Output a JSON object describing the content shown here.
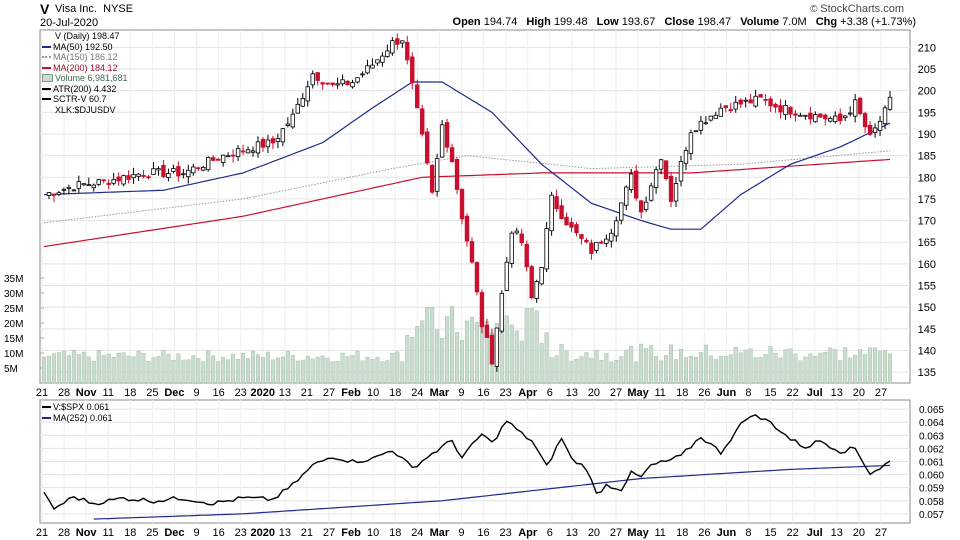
{
  "header": {
    "symbol": "V",
    "company": "Visa Inc.",
    "exchange": "NYSE",
    "date": "20-Jul-2020",
    "brand": "StockCharts.com",
    "ohlc": {
      "open_label": "Open",
      "open": "194.74",
      "high_label": "High",
      "high": "199.48",
      "low_label": "Low",
      "low": "193.67",
      "close_label": "Close",
      "close": "198.47",
      "volume_label": "Volume",
      "volume": "7.0M",
      "chg_label": "Chg",
      "chg": "+3.38 (+1.73%)"
    }
  },
  "colors": {
    "up": "#000000",
    "down": "#c8102e",
    "ma50": "#1e2a8c",
    "ma150": "#9a9a9a",
    "ma200": "#c8102e",
    "volume": "#c9dccd",
    "grid": "#e3e3e3",
    "ratio": "#000000",
    "ratio_ma": "#1e2a8c"
  },
  "price_panel": {
    "legend": [
      {
        "text": "V (Daily) 198.47",
        "swatch": "none"
      },
      {
        "text": "MA(50) 192.50",
        "swatch": "ma50"
      },
      {
        "text": "MA(150) 186.12",
        "swatch": "ma150"
      },
      {
        "text": "MA(200) 184.12",
        "swatch": "ma200"
      },
      {
        "text": "Volume 6,981,681",
        "swatch": "volume"
      },
      {
        "text": "ATR(200) 4.432",
        "swatch": "black"
      },
      {
        "text": "SCTR-V 60.7",
        "swatch": "black"
      },
      {
        "text": "XLK:$DJUSDV",
        "swatch": "none"
      }
    ],
    "y_ticks": [
      210,
      205,
      200,
      195,
      190,
      185,
      180,
      175,
      170,
      165,
      160,
      155,
      150,
      145,
      140,
      135
    ],
    "ylim": [
      132.5,
      214
    ],
    "volume_ticks": [
      "35M",
      "30M",
      "25M",
      "20M",
      "15M",
      "10M",
      "5M"
    ],
    "volume_values_m": [
      35,
      30,
      25,
      20,
      15,
      10,
      5
    ]
  },
  "ratio_panel": {
    "legend": [
      {
        "text": "V:$SPX 0.061",
        "swatch": "black"
      },
      {
        "text": "MA(252) 0.061",
        "swatch": "ma50"
      }
    ],
    "y_ticks": [
      "0.065",
      "0.064",
      "0.063",
      "0.062",
      "0.061",
      "0.060",
      "0.059",
      "0.058",
      "0.057"
    ],
    "ylim": [
      0.0563,
      0.0657
    ]
  },
  "x_axis": {
    "labels": [
      {
        "label": "21",
        "bold": false
      },
      {
        "label": "28",
        "bold": false
      },
      {
        "label": "Nov",
        "bold": true
      },
      {
        "label": "11",
        "bold": false
      },
      {
        "label": "18",
        "bold": false
      },
      {
        "label": "25",
        "bold": false
      },
      {
        "label": "Dec",
        "bold": true
      },
      {
        "label": "9",
        "bold": false
      },
      {
        "label": "16",
        "bold": false
      },
      {
        "label": "23",
        "bold": false
      },
      {
        "label": "2020",
        "bold": true
      },
      {
        "label": "13",
        "bold": false
      },
      {
        "label": "21",
        "bold": false
      },
      {
        "label": "27",
        "bold": false
      },
      {
        "label": "Feb",
        "bold": true
      },
      {
        "label": "10",
        "bold": false
      },
      {
        "label": "18",
        "bold": false
      },
      {
        "label": "24",
        "bold": false
      },
      {
        "label": "Mar",
        "bold": true
      },
      {
        "label": "9",
        "bold": false
      },
      {
        "label": "16",
        "bold": false
      },
      {
        "label": "23",
        "bold": false
      },
      {
        "label": "Apr",
        "bold": true
      },
      {
        "label": "6",
        "bold": false
      },
      {
        "label": "13",
        "bold": false
      },
      {
        "label": "20",
        "bold": false
      },
      {
        "label": "27",
        "bold": false
      },
      {
        "label": "May",
        "bold": true
      },
      {
        "label": "11",
        "bold": false
      },
      {
        "label": "18",
        "bold": false
      },
      {
        "label": "26",
        "bold": false
      },
      {
        "label": "Jun",
        "bold": true
      },
      {
        "label": "8",
        "bold": false
      },
      {
        "label": "15",
        "bold": false
      },
      {
        "label": "22",
        "bold": false
      },
      {
        "label": "Jul",
        "bold": true
      },
      {
        "label": "13",
        "bold": false
      },
      {
        "label": "20",
        "bold": false
      },
      {
        "label": "27",
        "bold": false
      }
    ]
  },
  "chart_data": {
    "type": "candlestick",
    "title": "V (Daily) 198.47",
    "x_axis_label": "",
    "y_axis_label": "",
    "price_anchor_points": [
      {
        "t": 0,
        "close": 176
      },
      {
        "t": 6,
        "close": 178
      },
      {
        "t": 12,
        "close": 179
      },
      {
        "t": 20,
        "close": 181
      },
      {
        "t": 28,
        "close": 181
      },
      {
        "t": 36,
        "close": 185
      },
      {
        "t": 42,
        "close": 187
      },
      {
        "t": 46,
        "close": 188
      },
      {
        "t": 50,
        "close": 194
      },
      {
        "t": 54,
        "close": 204
      },
      {
        "t": 58,
        "close": 201
      },
      {
        "t": 62,
        "close": 202
      },
      {
        "t": 66,
        "close": 206
      },
      {
        "t": 70,
        "close": 211
      },
      {
        "t": 72,
        "close": 212
      },
      {
        "t": 74,
        "close": 201
      },
      {
        "t": 76,
        "close": 189
      },
      {
        "t": 78,
        "close": 176
      },
      {
        "t": 80,
        "close": 192
      },
      {
        "t": 82,
        "close": 184
      },
      {
        "t": 84,
        "close": 171
      },
      {
        "t": 86,
        "close": 160
      },
      {
        "t": 88,
        "close": 146
      },
      {
        "t": 90,
        "close": 138
      },
      {
        "t": 92,
        "close": 153
      },
      {
        "t": 94,
        "close": 168
      },
      {
        "t": 96,
        "close": 165
      },
      {
        "t": 98,
        "close": 152
      },
      {
        "t": 100,
        "close": 160
      },
      {
        "t": 102,
        "close": 175
      },
      {
        "t": 106,
        "close": 168
      },
      {
        "t": 110,
        "close": 163
      },
      {
        "t": 114,
        "close": 168
      },
      {
        "t": 118,
        "close": 180
      },
      {
        "t": 120,
        "close": 172
      },
      {
        "t": 124,
        "close": 185
      },
      {
        "t": 126,
        "close": 175
      },
      {
        "t": 128,
        "close": 183
      },
      {
        "t": 130,
        "close": 191
      },
      {
        "t": 136,
        "close": 196
      },
      {
        "t": 140,
        "close": 197
      },
      {
        "t": 144,
        "close": 198
      },
      {
        "t": 148,
        "close": 196
      },
      {
        "t": 152,
        "close": 195
      },
      {
        "t": 156,
        "close": 194
      },
      {
        "t": 160,
        "close": 193
      },
      {
        "t": 163,
        "close": 197
      },
      {
        "t": 166,
        "close": 189
      },
      {
        "t": 169,
        "close": 195
      },
      {
        "t": 170,
        "close": 198.47
      }
    ],
    "ma50_anchor_points": [
      {
        "t": 0,
        "v": 176
      },
      {
        "t": 24,
        "v": 177
      },
      {
        "t": 40,
        "v": 181
      },
      {
        "t": 56,
        "v": 188
      },
      {
        "t": 66,
        "v": 196
      },
      {
        "t": 74,
        "v": 202
      },
      {
        "t": 80,
        "v": 202
      },
      {
        "t": 90,
        "v": 195
      },
      {
        "t": 100,
        "v": 183
      },
      {
        "t": 110,
        "v": 174
      },
      {
        "t": 120,
        "v": 170
      },
      {
        "t": 126,
        "v": 168
      },
      {
        "t": 132,
        "v": 168
      },
      {
        "t": 140,
        "v": 176
      },
      {
        "t": 150,
        "v": 183
      },
      {
        "t": 160,
        "v": 187
      },
      {
        "t": 170,
        "v": 192.5
      }
    ],
    "ma150_anchor_points": [
      {
        "t": 0,
        "v": 169.5
      },
      {
        "t": 40,
        "v": 175
      },
      {
        "t": 70,
        "v": 182
      },
      {
        "t": 85,
        "v": 185
      },
      {
        "t": 110,
        "v": 182
      },
      {
        "t": 140,
        "v": 183
      },
      {
        "t": 170,
        "v": 186.12
      }
    ],
    "ma200_anchor_points": [
      {
        "t": 0,
        "v": 164
      },
      {
        "t": 40,
        "v": 171
      },
      {
        "t": 76,
        "v": 180
      },
      {
        "t": 100,
        "v": 181
      },
      {
        "t": 130,
        "v": 181
      },
      {
        "t": 170,
        "v": 184.12
      }
    ],
    "ratio_anchor_points": [
      {
        "t": 0,
        "v": 0.0585
      },
      {
        "t": 2,
        "v": 0.0574
      },
      {
        "t": 6,
        "v": 0.0583
      },
      {
        "t": 10,
        "v": 0.0578
      },
      {
        "t": 16,
        "v": 0.0582
      },
      {
        "t": 22,
        "v": 0.058
      },
      {
        "t": 28,
        "v": 0.0582
      },
      {
        "t": 34,
        "v": 0.0578
      },
      {
        "t": 40,
        "v": 0.0582
      },
      {
        "t": 46,
        "v": 0.0581
      },
      {
        "t": 50,
        "v": 0.0592
      },
      {
        "t": 54,
        "v": 0.0607
      },
      {
        "t": 58,
        "v": 0.0614
      },
      {
        "t": 62,
        "v": 0.061
      },
      {
        "t": 66,
        "v": 0.0612
      },
      {
        "t": 70,
        "v": 0.0619
      },
      {
        "t": 74,
        "v": 0.0605
      },
      {
        "t": 78,
        "v": 0.0616
      },
      {
        "t": 82,
        "v": 0.0626
      },
      {
        "t": 84,
        "v": 0.0613
      },
      {
        "t": 88,
        "v": 0.0631
      },
      {
        "t": 90,
        "v": 0.0624
      },
      {
        "t": 93,
        "v": 0.0641
      },
      {
        "t": 96,
        "v": 0.0631
      },
      {
        "t": 98,
        "v": 0.0626
      },
      {
        "t": 101,
        "v": 0.0606
      },
      {
        "t": 104,
        "v": 0.0628
      },
      {
        "t": 106,
        "v": 0.0612
      },
      {
        "t": 109,
        "v": 0.0605
      },
      {
        "t": 111,
        "v": 0.0585
      },
      {
        "t": 113,
        "v": 0.0592
      },
      {
        "t": 116,
        "v": 0.0589
      },
      {
        "t": 118,
        "v": 0.0601
      },
      {
        "t": 120,
        "v": 0.0598
      },
      {
        "t": 122,
        "v": 0.0607
      },
      {
        "t": 125,
        "v": 0.061
      },
      {
        "t": 128,
        "v": 0.0614
      },
      {
        "t": 132,
        "v": 0.0629
      },
      {
        "t": 136,
        "v": 0.0617
      },
      {
        "t": 140,
        "v": 0.0638
      },
      {
        "t": 142,
        "v": 0.0646
      },
      {
        "t": 146,
        "v": 0.064
      },
      {
        "t": 150,
        "v": 0.0627
      },
      {
        "t": 153,
        "v": 0.0621
      },
      {
        "t": 156,
        "v": 0.0626
      },
      {
        "t": 160,
        "v": 0.0618
      },
      {
        "t": 163,
        "v": 0.062
      },
      {
        "t": 166,
        "v": 0.0601
      },
      {
        "t": 168,
        "v": 0.0605
      },
      {
        "t": 170,
        "v": 0.061
      }
    ],
    "ratio_ma_anchor_points": [
      {
        "t": 10,
        "v": 0.0566
      },
      {
        "t": 40,
        "v": 0.057
      },
      {
        "t": 80,
        "v": 0.058
      },
      {
        "t": 120,
        "v": 0.0597
      },
      {
        "t": 150,
        "v": 0.0604
      },
      {
        "t": 170,
        "v": 0.0607
      }
    ]
  }
}
